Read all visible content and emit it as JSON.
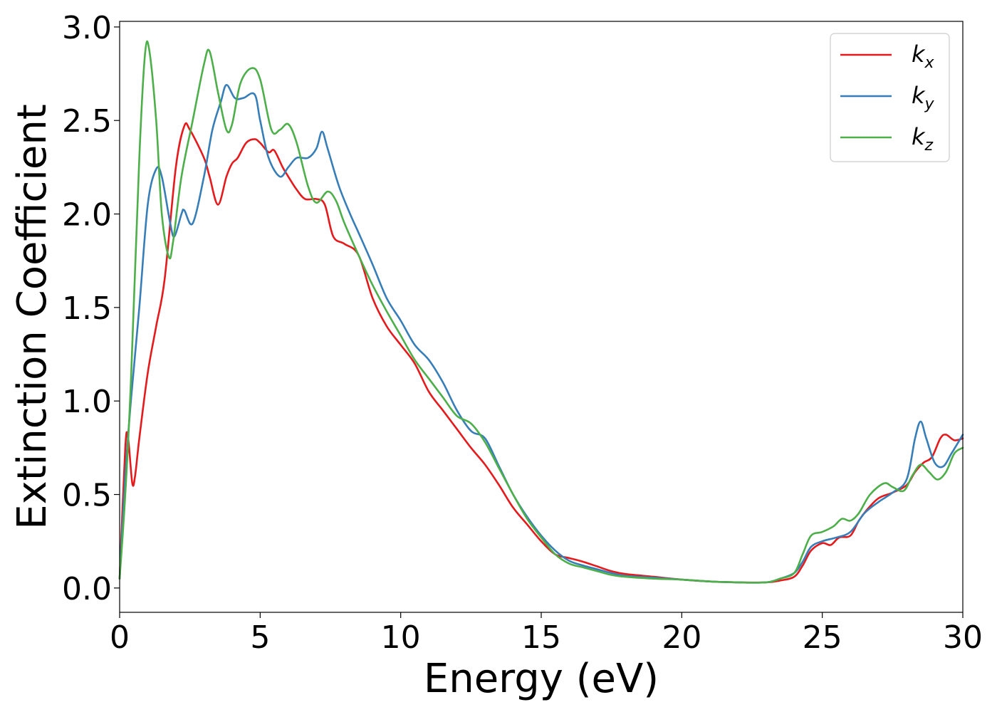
{
  "chart_data": {
    "type": "line",
    "xlabel": "Energy (eV)",
    "ylabel": "Extinction Coefficient",
    "xlim": [
      0,
      30
    ],
    "ylim": [
      -0.13,
      3.03
    ],
    "x_ticks": [
      "0",
      "5",
      "10",
      "15",
      "20",
      "25",
      "30"
    ],
    "y_ticks": [
      "0.0",
      "0.5",
      "1.0",
      "1.5",
      "2.0",
      "2.5",
      "3.0"
    ],
    "grid": false,
    "legend_position": "top-right",
    "series": [
      {
        "name": "k",
        "subscript": "x",
        "color": "#e41a1c",
        "points": [
          [
            0,
            0.05
          ],
          [
            0.2,
            0.75
          ],
          [
            0.3,
            0.8
          ],
          [
            0.45,
            0.56
          ],
          [
            0.55,
            0.6
          ],
          [
            0.7,
            0.8
          ],
          [
            1.0,
            1.15
          ],
          [
            1.3,
            1.4
          ],
          [
            1.6,
            1.65
          ],
          [
            2.0,
            2.25
          ],
          [
            2.3,
            2.47
          ],
          [
            2.5,
            2.45
          ],
          [
            3.0,
            2.3
          ],
          [
            3.2,
            2.2
          ],
          [
            3.5,
            2.05
          ],
          [
            3.8,
            2.2
          ],
          [
            4.0,
            2.27
          ],
          [
            4.2,
            2.3
          ],
          [
            4.5,
            2.38
          ],
          [
            4.8,
            2.4
          ],
          [
            5.0,
            2.38
          ],
          [
            5.3,
            2.33
          ],
          [
            5.5,
            2.34
          ],
          [
            5.8,
            2.25
          ],
          [
            6.0,
            2.2
          ],
          [
            6.3,
            2.13
          ],
          [
            6.6,
            2.08
          ],
          [
            7.0,
            2.08
          ],
          [
            7.3,
            2.05
          ],
          [
            7.6,
            1.88
          ],
          [
            8.0,
            1.84
          ],
          [
            8.5,
            1.78
          ],
          [
            9.0,
            1.55
          ],
          [
            9.5,
            1.4
          ],
          [
            10.0,
            1.3
          ],
          [
            10.5,
            1.2
          ],
          [
            11.0,
            1.05
          ],
          [
            11.5,
            0.95
          ],
          [
            12.0,
            0.85
          ],
          [
            12.5,
            0.75
          ],
          [
            13.0,
            0.66
          ],
          [
            13.5,
            0.55
          ],
          [
            14.0,
            0.43
          ],
          [
            14.5,
            0.34
          ],
          [
            15.0,
            0.25
          ],
          [
            15.5,
            0.18
          ],
          [
            16.0,
            0.16
          ],
          [
            16.5,
            0.14
          ],
          [
            17.0,
            0.115
          ],
          [
            17.5,
            0.09
          ],
          [
            18.0,
            0.075
          ],
          [
            19.0,
            0.06
          ],
          [
            20.0,
            0.045
          ],
          [
            21.0,
            0.035
          ],
          [
            22.0,
            0.03
          ],
          [
            23.0,
            0.03
          ],
          [
            23.5,
            0.04
          ],
          [
            24.0,
            0.06
          ],
          [
            24.3,
            0.12
          ],
          [
            24.6,
            0.2
          ],
          [
            25.0,
            0.24
          ],
          [
            25.3,
            0.23
          ],
          [
            25.6,
            0.27
          ],
          [
            26.0,
            0.28
          ],
          [
            26.3,
            0.36
          ],
          [
            26.6,
            0.42
          ],
          [
            27.0,
            0.48
          ],
          [
            27.5,
            0.51
          ],
          [
            28.0,
            0.55
          ],
          [
            28.3,
            0.62
          ],
          [
            28.6,
            0.67
          ],
          [
            28.9,
            0.7
          ],
          [
            29.2,
            0.8
          ],
          [
            29.4,
            0.82
          ],
          [
            29.7,
            0.79
          ],
          [
            30.0,
            0.8
          ]
        ]
      },
      {
        "name": "k",
        "subscript": "y",
        "color": "#377eb8",
        "points": [
          [
            0,
            0.05
          ],
          [
            0.2,
            0.6
          ],
          [
            0.4,
            1.0
          ],
          [
            0.7,
            1.5
          ],
          [
            1.0,
            2.05
          ],
          [
            1.3,
            2.24
          ],
          [
            1.5,
            2.2
          ],
          [
            1.8,
            1.95
          ],
          [
            1.95,
            1.88
          ],
          [
            2.2,
            2.0
          ],
          [
            2.3,
            2.02
          ],
          [
            2.6,
            1.95
          ],
          [
            3.0,
            2.2
          ],
          [
            3.3,
            2.45
          ],
          [
            3.6,
            2.6
          ],
          [
            3.8,
            2.69
          ],
          [
            4.1,
            2.62
          ],
          [
            4.4,
            2.62
          ],
          [
            4.8,
            2.64
          ],
          [
            5.0,
            2.5
          ],
          [
            5.3,
            2.3
          ],
          [
            5.7,
            2.2
          ],
          [
            6.0,
            2.25
          ],
          [
            6.3,
            2.3
          ],
          [
            6.7,
            2.3
          ],
          [
            7.0,
            2.35
          ],
          [
            7.2,
            2.44
          ],
          [
            7.4,
            2.35
          ],
          [
            7.8,
            2.15
          ],
          [
            8.2,
            2.0
          ],
          [
            8.5,
            1.9
          ],
          [
            9.0,
            1.73
          ],
          [
            9.5,
            1.55
          ],
          [
            10.0,
            1.43
          ],
          [
            10.5,
            1.3
          ],
          [
            11.0,
            1.22
          ],
          [
            11.5,
            1.1
          ],
          [
            12.0,
            0.95
          ],
          [
            12.5,
            0.84
          ],
          [
            13.0,
            0.8
          ],
          [
            13.5,
            0.65
          ],
          [
            14.0,
            0.5
          ],
          [
            14.5,
            0.38
          ],
          [
            15.0,
            0.28
          ],
          [
            15.5,
            0.2
          ],
          [
            16.0,
            0.145
          ],
          [
            16.5,
            0.12
          ],
          [
            17.0,
            0.1
          ],
          [
            17.5,
            0.08
          ],
          [
            18.0,
            0.065
          ],
          [
            19.0,
            0.055
          ],
          [
            20.0,
            0.045
          ],
          [
            21.0,
            0.035
          ],
          [
            22.0,
            0.03
          ],
          [
            23.0,
            0.03
          ],
          [
            23.5,
            0.05
          ],
          [
            24.0,
            0.08
          ],
          [
            24.3,
            0.14
          ],
          [
            24.6,
            0.22
          ],
          [
            25.0,
            0.25
          ],
          [
            25.5,
            0.27
          ],
          [
            26.0,
            0.3
          ],
          [
            26.5,
            0.4
          ],
          [
            27.0,
            0.46
          ],
          [
            27.5,
            0.51
          ],
          [
            28.0,
            0.58
          ],
          [
            28.3,
            0.8
          ],
          [
            28.5,
            0.89
          ],
          [
            28.7,
            0.8
          ],
          [
            29.0,
            0.67
          ],
          [
            29.3,
            0.65
          ],
          [
            29.6,
            0.72
          ],
          [
            30.0,
            0.82
          ]
        ]
      },
      {
        "name": "k",
        "subscript": "z",
        "color": "#4daf4a",
        "points": [
          [
            0,
            0.05
          ],
          [
            0.2,
            0.5
          ],
          [
            0.4,
            1.1
          ],
          [
            0.7,
            2.3
          ],
          [
            0.9,
            2.85
          ],
          [
            1.05,
            2.88
          ],
          [
            1.3,
            2.5
          ],
          [
            1.5,
            2.0
          ],
          [
            1.75,
            1.77
          ],
          [
            1.9,
            1.85
          ],
          [
            2.2,
            2.2
          ],
          [
            2.6,
            2.5
          ],
          [
            3.0,
            2.8
          ],
          [
            3.2,
            2.87
          ],
          [
            3.5,
            2.65
          ],
          [
            3.8,
            2.45
          ],
          [
            4.0,
            2.48
          ],
          [
            4.3,
            2.7
          ],
          [
            4.7,
            2.78
          ],
          [
            5.0,
            2.72
          ],
          [
            5.4,
            2.45
          ],
          [
            5.7,
            2.45
          ],
          [
            6.0,
            2.48
          ],
          [
            6.3,
            2.38
          ],
          [
            6.7,
            2.15
          ],
          [
            7.0,
            2.06
          ],
          [
            7.4,
            2.12
          ],
          [
            7.7,
            2.07
          ],
          [
            8.0,
            1.95
          ],
          [
            8.5,
            1.78
          ],
          [
            9.0,
            1.62
          ],
          [
            9.5,
            1.48
          ],
          [
            10.0,
            1.35
          ],
          [
            10.5,
            1.22
          ],
          [
            11.0,
            1.12
          ],
          [
            11.5,
            1.02
          ],
          [
            12.0,
            0.92
          ],
          [
            12.5,
            0.88
          ],
          [
            13.0,
            0.78
          ],
          [
            13.5,
            0.64
          ],
          [
            14.0,
            0.5
          ],
          [
            14.5,
            0.37
          ],
          [
            15.0,
            0.27
          ],
          [
            15.5,
            0.18
          ],
          [
            16.0,
            0.13
          ],
          [
            16.5,
            0.11
          ],
          [
            17.0,
            0.09
          ],
          [
            17.5,
            0.07
          ],
          [
            18.0,
            0.06
          ],
          [
            19.0,
            0.05
          ],
          [
            20.0,
            0.045
          ],
          [
            21.0,
            0.035
          ],
          [
            22.0,
            0.03
          ],
          [
            23.0,
            0.03
          ],
          [
            23.5,
            0.05
          ],
          [
            24.0,
            0.08
          ],
          [
            24.3,
            0.18
          ],
          [
            24.6,
            0.28
          ],
          [
            25.0,
            0.3
          ],
          [
            25.4,
            0.33
          ],
          [
            25.7,
            0.37
          ],
          [
            26.0,
            0.36
          ],
          [
            26.3,
            0.4
          ],
          [
            26.7,
            0.5
          ],
          [
            27.2,
            0.56
          ],
          [
            27.5,
            0.54
          ],
          [
            27.9,
            0.52
          ],
          [
            28.2,
            0.6
          ],
          [
            28.5,
            0.66
          ],
          [
            28.8,
            0.62
          ],
          [
            29.1,
            0.58
          ],
          [
            29.4,
            0.62
          ],
          [
            29.7,
            0.72
          ],
          [
            30.0,
            0.75
          ]
        ]
      }
    ]
  }
}
